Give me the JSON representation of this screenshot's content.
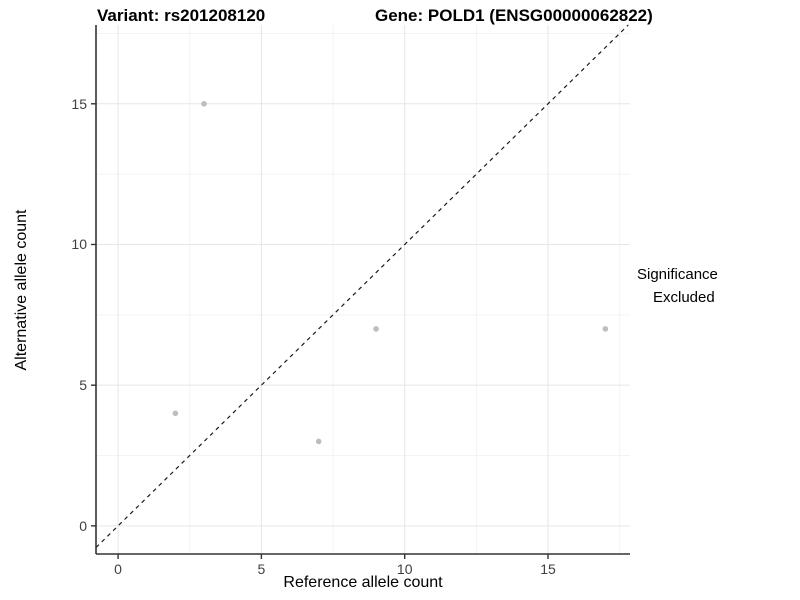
{
  "title": {
    "variant": "Variant: rs201208120",
    "gene": "Gene: POLD1 (ENSG00000062822)"
  },
  "chart_data": {
    "type": "scatter",
    "title_left": "Variant: rs201208120",
    "title_right": "Gene: POLD1 (ENSG00000062822)",
    "xlabel": "Reference allele count",
    "ylabel": "Alternative allele count",
    "x_ticks": [
      0,
      5,
      10,
      15
    ],
    "y_ticks": [
      0,
      5,
      10,
      15
    ],
    "xlim": [
      -0.77,
      17.86
    ],
    "ylim": [
      -1.0,
      17.8
    ],
    "grid": {
      "major": true,
      "minor": true,
      "minor_step": 2.5
    },
    "series": [
      {
        "name": "Excluded",
        "color": "#bdbdbd",
        "points": [
          [
            2,
            4
          ],
          [
            3,
            15
          ],
          [
            7,
            3
          ],
          [
            9,
            7
          ],
          [
            17,
            7
          ]
        ]
      }
    ],
    "reference_line": {
      "slope": 1,
      "intercept": 0,
      "style": "dashed",
      "color": "#1a1a1a"
    },
    "legend": {
      "title": "Significance",
      "position": "right",
      "items": [
        {
          "label": "Excluded",
          "color": "#bdbdbd"
        }
      ]
    }
  },
  "colors": {
    "background": "#ffffff",
    "grid_major": "#e6e6e6",
    "grid_minor": "#f3f3f3",
    "axis_line": "#333333",
    "tick_mark": "#333333",
    "tick_label": "#404040",
    "point": "#bdbdbd"
  }
}
